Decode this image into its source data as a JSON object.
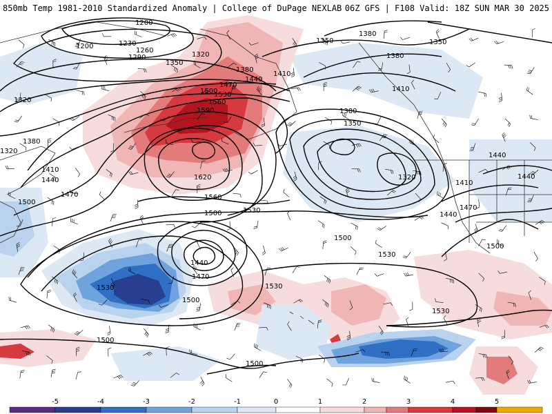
{
  "header": {
    "left_title": "850mb Temp 1981-2010 Standardized Anomaly | College of DuPage NEXLAB",
    "right_title": "06Z GFS | F108 Valid: 18Z SUN MAR 30 2025"
  },
  "colors": {
    "neg5": "#5b2a86",
    "neg4": "#283f8f",
    "neg3": "#2f6fc4",
    "neg2": "#6fa3dd",
    "neg1": "#b9d2ee",
    "neg05": "#dde8f5",
    "pos05": "#f6dcdc",
    "pos1": "#f0b5b5",
    "pos2": "#e47b7b",
    "pos3": "#d6393e",
    "pos4": "#b3141e",
    "pos5": "#7a0a10",
    "pos6": "#f0a800",
    "contour": "#000000",
    "coast": "#333333"
  },
  "colorbar": {
    "ticks": [
      "-5",
      "-4",
      "-3",
      "-2",
      "-1",
      "0",
      "1",
      "2",
      "3",
      "4",
      "5"
    ]
  },
  "contour_labels": [
    {
      "id": "c1200a",
      "text": "1200"
    },
    {
      "id": "c1200b",
      "text": "1200"
    },
    {
      "id": "c1230",
      "text": "1230"
    },
    {
      "id": "c1260",
      "text": "1260"
    },
    {
      "id": "c1290",
      "text": "1290"
    },
    {
      "id": "c1320a",
      "text": "1320"
    },
    {
      "id": "c1320b",
      "text": "1320"
    },
    {
      "id": "c1350a",
      "text": "1350"
    },
    {
      "id": "c1350b",
      "text": "1350"
    },
    {
      "id": "c1380a",
      "text": "1380"
    },
    {
      "id": "c1380b",
      "text": "1380"
    },
    {
      "id": "c1410a",
      "text": "1410"
    },
    {
      "id": "c1440a",
      "text": "1440"
    },
    {
      "id": "c1470a",
      "text": "1470"
    },
    {
      "id": "c1500a",
      "text": "1500"
    },
    {
      "id": "c1530a",
      "text": "1530"
    },
    {
      "id": "c1560a",
      "text": "1560"
    },
    {
      "id": "c1590",
      "text": "1590"
    },
    {
      "id": "c1380c",
      "text": "1380"
    },
    {
      "id": "c1410b",
      "text": "1410"
    },
    {
      "id": "c1440b",
      "text": "1440"
    },
    {
      "id": "c1470b",
      "text": "1470"
    },
    {
      "id": "c1500b",
      "text": "1500"
    },
    {
      "id": "c1620",
      "text": "1620"
    },
    {
      "id": "c1560b",
      "text": "1560"
    },
    {
      "id": "c1530b",
      "text": "1530"
    },
    {
      "id": "c1500c",
      "text": "1500"
    },
    {
      "id": "c1440c",
      "text": "1440"
    },
    {
      "id": "c1470c",
      "text": "1470"
    },
    {
      "id": "c1500d",
      "text": "1500"
    },
    {
      "id": "c1530c",
      "text": "1530"
    },
    {
      "id": "c1500e",
      "text": "1500"
    },
    {
      "id": "c1380d",
      "text": "1380"
    },
    {
      "id": "c1350c",
      "text": "1350"
    },
    {
      "id": "c1320c",
      "text": "1320"
    },
    {
      "id": "c1410c",
      "text": "1410"
    },
    {
      "id": "c1440d",
      "text": "1440"
    },
    {
      "id": "c1470d",
      "text": "1470"
    },
    {
      "id": "c1500f",
      "text": "1500"
    },
    {
      "id": "c1530d",
      "text": "1530"
    },
    {
      "id": "c1530e",
      "text": "1530"
    },
    {
      "id": "c1530f",
      "text": "1530"
    },
    {
      "id": "c1440e",
      "text": "1440"
    },
    {
      "id": "c1440f",
      "text": "1440"
    },
    {
      "id": "c1350d",
      "text": "1350"
    },
    {
      "id": "c1380e",
      "text": "1380"
    },
    {
      "id": "c1410d",
      "text": "1410"
    },
    {
      "id": "c1500g",
      "text": "1500"
    },
    {
      "id": "c1500h",
      "text": "1500"
    },
    {
      "id": "c1320d",
      "text": "1320"
    }
  ]
}
